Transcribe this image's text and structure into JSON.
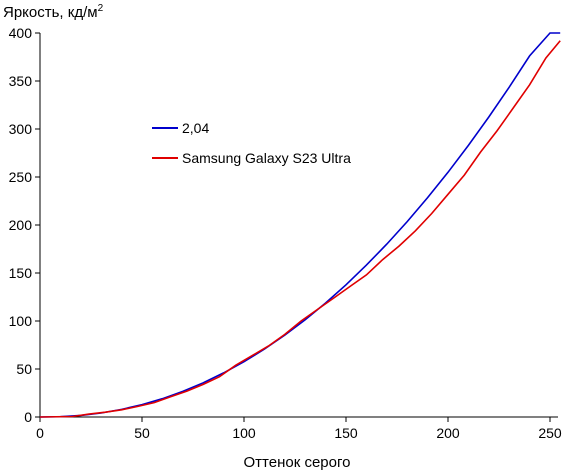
{
  "chart_data": {
    "type": "line",
    "ylabel": "Яркость, кд/м",
    "ylabel_sup": "2",
    "xlabel": "Оттенок серого",
    "xlim": [
      0,
      255
    ],
    "ylim": [
      0,
      400
    ],
    "xticks": [
      "0",
      "50",
      "100",
      "150",
      "200",
      "250"
    ],
    "yticks": [
      "0",
      "50",
      "100",
      "150",
      "200",
      "250",
      "300",
      "350",
      "400"
    ],
    "grid": false,
    "legend_position": "upper-left-inside",
    "series": [
      {
        "name": "2,04",
        "color": "#0000cc",
        "x": [
          0,
          10,
          20,
          30,
          40,
          50,
          60,
          70,
          80,
          90,
          100,
          110,
          120,
          130,
          140,
          150,
          160,
          170,
          180,
          190,
          200,
          210,
          220,
          230,
          240,
          250,
          255
        ],
        "y": [
          0,
          0.3,
          1.7,
          4.2,
          7.9,
          12.9,
          19.1,
          26.7,
          35.6,
          45.9,
          57.6,
          70.7,
          85.3,
          101.3,
          118.8,
          137.7,
          158.2,
          180.1,
          203.5,
          228.5,
          254.9,
          282.9,
          312.5,
          343.5,
          376.1,
          410.3,
          420
        ]
      },
      {
        "name": "Samsung Galaxy S23 Ultra",
        "color": "#e00000",
        "x": [
          0,
          16,
          24,
          32,
          40,
          48,
          56,
          64,
          72,
          80,
          88,
          96,
          104,
          112,
          120,
          128,
          136,
          144,
          152,
          160,
          168,
          176,
          184,
          192,
          200,
          208,
          216,
          224,
          232,
          240,
          248,
          255
        ],
        "y": [
          0,
          0.5,
          3,
          5,
          7.5,
          11,
          15,
          21,
          27,
          34,
          42,
          54,
          64,
          74,
          86,
          100,
          112,
          124,
          136,
          148,
          164,
          178,
          194,
          212,
          232,
          252,
          276,
          298,
          322,
          346,
          374,
          392
        ]
      }
    ]
  }
}
